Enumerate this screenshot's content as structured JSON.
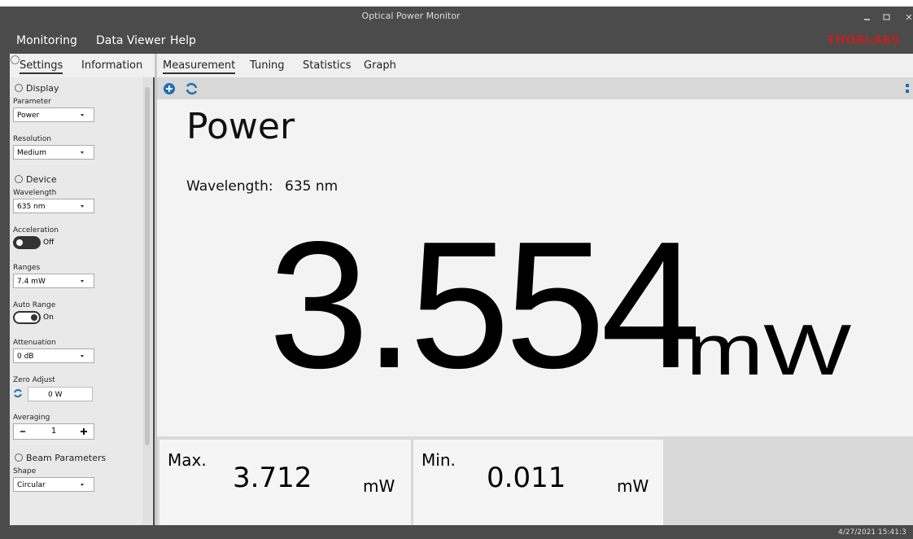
{
  "window": {
    "title": "Optical Power Monitor"
  },
  "menu": [
    "Monitoring",
    "Data Viewer",
    "Help"
  ],
  "logo": "THORLABS",
  "side_tabs": [
    "Settings",
    "Information"
  ],
  "settings": [
    {
      "section": "Display",
      "items": [
        {
          "label": "Parameter",
          "dropdown": "Power"
        },
        {
          "label": "Resolution",
          "dropdown": "Medium"
        }
      ]
    },
    {
      "section": "Device",
      "items": [
        {
          "label": "Wavelength",
          "dropdown": "635 nm"
        },
        {
          "label": "Acceleration",
          "toggle": "Off"
        },
        {
          "label": "Ranges",
          "dropdown": "7.4 mW"
        },
        {
          "label": "Auto Range",
          "toggle": "On"
        },
        {
          "label": "Attenuation",
          "dropdown": "0 dB"
        },
        {
          "label": "Zero Adjust",
          "field": "0 W"
        },
        {
          "label": "Averaging",
          "stepper": "1"
        }
      ]
    },
    {
      "section": "Beam Parameters",
      "items": [
        {
          "label": "Shape",
          "dropdown": "Circular"
        }
      ]
    }
  ],
  "main_tabs": [
    "Measurement",
    "Tuning",
    "Statistics",
    "Graph"
  ],
  "measurement": {
    "title": "Power",
    "wavelength_label": "Wavelength:",
    "wavelength": "635 nm",
    "value": "3.554",
    "unit": "mW"
  },
  "stats": [
    {
      "label": "Max.",
      "value": "3.712",
      "unit": "mW"
    },
    {
      "label": "Min.",
      "value": "0.011",
      "unit": "mW"
    }
  ],
  "status": {
    "timestamp": "4/27/2021 15:41:3"
  }
}
